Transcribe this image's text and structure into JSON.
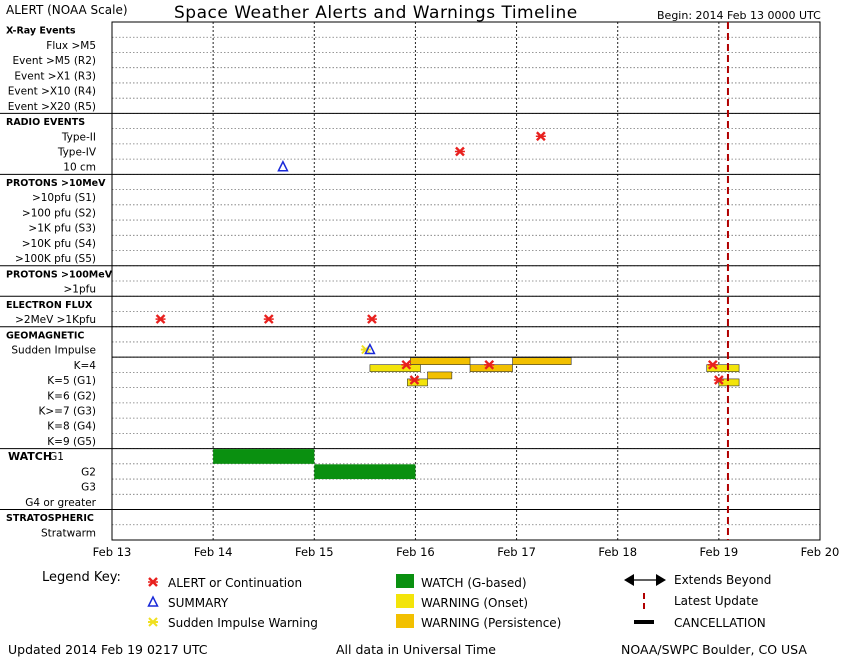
{
  "header": {
    "left": "ALERT (NOAA Scale)",
    "title": "Space Weather Alerts and Warnings Timeline",
    "begin": "Begin: 2014 Feb 13 0000 UTC"
  },
  "footer": {
    "updated": "Updated 2014 Feb 19 0217 UTC",
    "note": "All data in Universal Time",
    "credit": "NOAA/SWPC Boulder, CO USA"
  },
  "legend": {
    "title": "Legend Key:",
    "alert": "ALERT or Continuation",
    "summary": "SUMMARY",
    "siw": "Sudden Impulse Warning",
    "watch": "WATCH (G-based)",
    "warn_onset": "WARNING (Onset)",
    "warn_persist": "WARNING (Persistence)",
    "extends": "Extends Beyond",
    "latest": "Latest Update",
    "cancel": "CANCELLATION"
  },
  "colors": {
    "alert": "#e8201e",
    "summary": "#1a2ad8",
    "siw": "#f0e020",
    "watch": "#0a9010",
    "warn_onset": "#f3e40a",
    "warn_persist": "#f2c000",
    "latest": "#b00000"
  },
  "chart_data": {
    "type": "timeline",
    "x_start_day": 13,
    "x_end_day": 20,
    "x_ticks": [
      "Feb 13",
      "Feb 14",
      "Feb 15",
      "Feb 16",
      "Feb 17",
      "Feb 18",
      "Feb 19",
      "Feb 20"
    ],
    "latest_update_day": 19.09,
    "rows": [
      {
        "label": "X-Ray Events",
        "header": true
      },
      {
        "label": "Flux >M5"
      },
      {
        "label": "Event >M5 (R2)"
      },
      {
        "label": "Event >X1 (R3)"
      },
      {
        "label": "Event >X10 (R4)"
      },
      {
        "label": "Event >X20 (R5)"
      },
      {
        "label": "RADIO EVENTS",
        "header": true
      },
      {
        "label": "Type-II"
      },
      {
        "label": "Type-IV"
      },
      {
        "label": "10 cm"
      },
      {
        "label": "PROTONS >10MeV",
        "header": true
      },
      {
        "label": ">10pfu (S1)"
      },
      {
        "label": ">100 pfu (S2)"
      },
      {
        "label": ">1K pfu (S3)"
      },
      {
        "label": ">10K pfu (S4)"
      },
      {
        "label": ">100K pfu (S5)"
      },
      {
        "label": "PROTONS >100MeV",
        "header": true
      },
      {
        "label": ">1pfu"
      },
      {
        "label": "ELECTRON FLUX",
        "header": true
      },
      {
        "label": ">2MeV >1Kpfu"
      },
      {
        "label": "GEOMAGNETIC",
        "header": true
      },
      {
        "label": "Sudden Impulse"
      },
      {
        "label": "K=4"
      },
      {
        "label": "K=5 (G1)"
      },
      {
        "label": "K=6 (G2)"
      },
      {
        "label": "K>=7 (G3)"
      },
      {
        "label": "K=8 (G4)"
      },
      {
        "label": "K=9 (G5)"
      },
      {
        "label": "WATCH",
        "header": true,
        "big": true
      },
      {
        "label": "G2"
      },
      {
        "label": "G3"
      },
      {
        "label": "G4 or greater"
      },
      {
        "label": "STRATOSPHERIC",
        "header": true
      },
      {
        "label": "Stratwarm"
      }
    ],
    "watch_g1_label": "G1",
    "alerts": [
      {
        "row": "Type-II",
        "day": 17.24
      },
      {
        "row": "Type-IV",
        "day": 16.44
      },
      {
        "row": ">2MeV >1Kpfu",
        "day": 13.48
      },
      {
        "row": ">2MeV >1Kpfu",
        "day": 14.55
      },
      {
        "row": ">2MeV >1Kpfu",
        "day": 15.57
      },
      {
        "row": "K=4",
        "day": 15.91
      },
      {
        "row": "K=4",
        "day": 16.73
      },
      {
        "row": "K=4",
        "day": 18.94
      },
      {
        "row": "K=5 (G1)",
        "day": 15.99
      },
      {
        "row": "K=5 (G1)",
        "day": 19.0
      }
    ],
    "summaries": [
      {
        "row": "10 cm",
        "day": 14.69
      },
      {
        "row": "Sudden Impulse",
        "day": 15.55
      }
    ],
    "impulse_warnings": [
      {
        "row": "Sudden Impulse",
        "day": 15.51
      }
    ],
    "warnings": [
      {
        "lane": "K=4 upper",
        "start": 15.95,
        "end": 16.54,
        "kind": "persistence"
      },
      {
        "lane": "K=4 upper",
        "start": 16.96,
        "end": 17.54,
        "kind": "persistence"
      },
      {
        "lane": "K=4 lower",
        "start": 15.55,
        "end": 16.05,
        "kind": "onset"
      },
      {
        "lane": "K=4 lower",
        "start": 16.54,
        "end": 16.96,
        "kind": "persistence"
      },
      {
        "lane": "K=4 lower",
        "start": 18.88,
        "end": 19.2,
        "kind": "onset"
      },
      {
        "lane": "K=5 upper",
        "start": 16.12,
        "end": 16.36,
        "kind": "persistence"
      },
      {
        "lane": "K=5 lower",
        "start": 15.92,
        "end": 16.12,
        "kind": "onset"
      },
      {
        "lane": "K=5 lower",
        "start": 19.0,
        "end": 19.2,
        "kind": "onset"
      }
    ],
    "watches": [
      {
        "row": "G1",
        "start": 14.0,
        "end": 15.0
      },
      {
        "row": "G2",
        "start": 15.0,
        "end": 16.0
      }
    ]
  }
}
